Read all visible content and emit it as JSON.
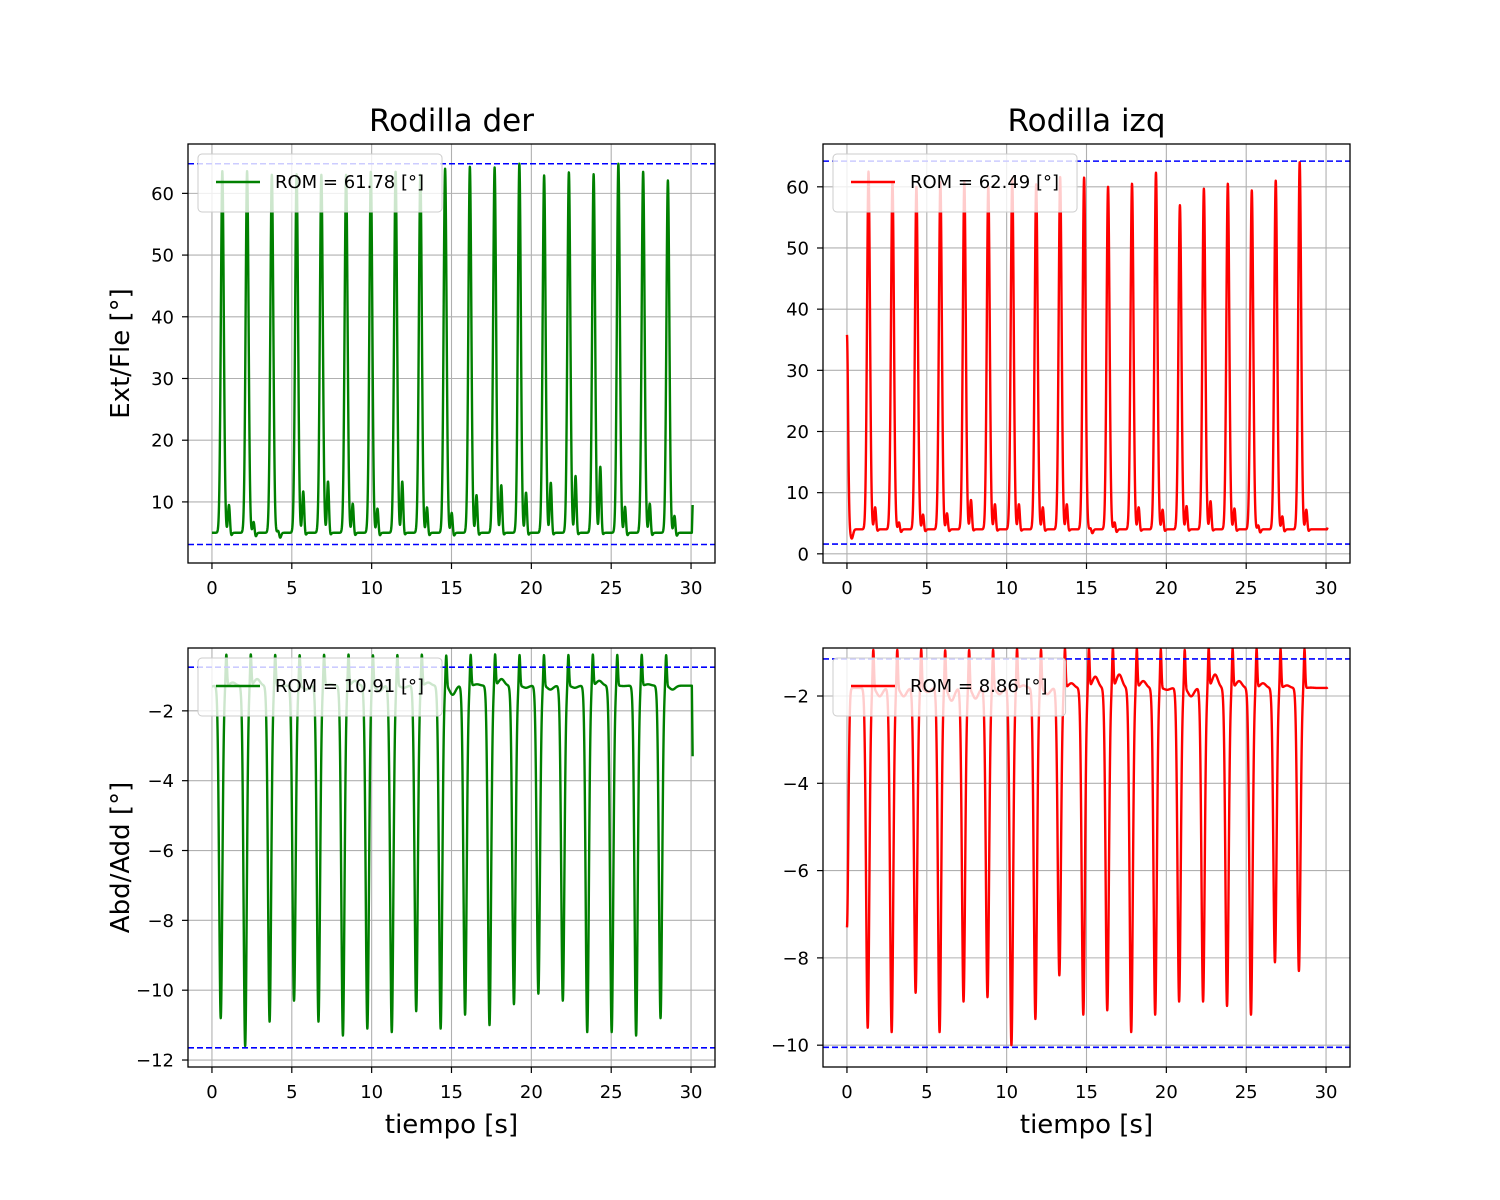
{
  "chart_data": [
    {
      "type": "line",
      "title": "Rodilla der",
      "xlabel": "",
      "ylabel": "Ext/Fle [°]",
      "xlim": [
        -1.5,
        31.5
      ],
      "ylim": [
        0.1,
        68
      ],
      "xticks": [
        0,
        5,
        10,
        15,
        20,
        25,
        30
      ],
      "yticks": [
        10,
        20,
        30,
        40,
        50,
        60
      ],
      "grid": true,
      "legend_position": "top-left",
      "color": "#008000",
      "series": [
        {
          "name": "ROM = 61.78 [°]",
          "start": 0,
          "end": 30.1,
          "base": 5,
          "first_peak": 0.65,
          "period": 1.55,
          "peaks": [
            63.6,
            63.6,
            63.0,
            63.1,
            63.0,
            63.0,
            63.5,
            63.5,
            63.0,
            64.0,
            64.3,
            64.2,
            64.8,
            62.9,
            63.4,
            63.1,
            64.8,
            63.5,
            62.1
          ],
          "bumps": [
            10.8,
            8.0,
            6.5,
            13.0,
            14.6,
            11.0,
            10.2,
            14.6,
            10.4,
            9.5,
            12.4,
            14.0,
            12.8,
            14.4,
            15.5,
            17.0,
            10.5,
            11.0,
            9.0
          ],
          "final": 9.5
        }
      ],
      "reference_lines": [
        64.8,
        3.1
      ]
    },
    {
      "type": "line",
      "title": "Rodilla izq",
      "xlabel": "",
      "ylabel": "",
      "xlim": [
        -1.5,
        31.5
      ],
      "ylim": [
        -1.5,
        67
      ],
      "xticks": [
        0,
        5,
        10,
        15,
        20,
        25,
        30
      ],
      "yticks": [
        0,
        10,
        20,
        30,
        40,
        50,
        60
      ],
      "grid": true,
      "legend_position": "top-left",
      "color": "#ff0000",
      "series": [
        {
          "name": "ROM = 62.49 [°]",
          "start": 0,
          "end": 30.1,
          "base": 4,
          "first_peak": 1.35,
          "period": 1.5,
          "peaks": [
            62.5,
            60.8,
            60.0,
            60.8,
            60.8,
            60.0,
            61.4,
            60.4,
            61.6,
            61.5,
            60.0,
            60.5,
            62.3,
            57.0,
            59.7,
            60.5,
            59.4,
            61.0,
            64.0
          ],
          "bumps": [
            9.0,
            6.5,
            7.8,
            8.0,
            10.2,
            9.5,
            9.5,
            9.0,
            9.5,
            5.5,
            6.5,
            9.0,
            8.6,
            9.2,
            10.0,
            8.8,
            6.0,
            7.5,
            8.6
          ],
          "start_value": 35.8,
          "final": 4.3
        }
      ],
      "reference_lines": [
        64.2,
        1.6
      ]
    },
    {
      "type": "line",
      "title": "",
      "xlabel": "tiempo [s]",
      "ylabel": "Abd/Add [°]",
      "xlim": [
        -1.5,
        31.5
      ],
      "ylim": [
        -12.2,
        -0.2
      ],
      "xticks": [
        0,
        5,
        10,
        15,
        20,
        25,
        30
      ],
      "yticks": [
        -12,
        -10,
        -8,
        -6,
        -4,
        -2
      ],
      "grid": true,
      "legend_position": "top-left",
      "color": "#008000",
      "series": [
        {
          "name": "ROM = 10.91 [°]",
          "start": 0,
          "end": 30.1,
          "first_peak": 0.55,
          "period": 1.53,
          "troughs": [
            -10.8,
            -11.6,
            -10.9,
            -10.3,
            -10.9,
            -11.3,
            -11.1,
            -11.2,
            -10.6,
            -11.1,
            -10.7,
            -11.0,
            -10.4,
            -10.1,
            -10.3,
            -11.2,
            -11.2,
            -11.3,
            -10.8
          ],
          "highs": [
            -1.1,
            -0.9,
            -1.3,
            -1.5,
            -1.2,
            -1.0,
            -1.6,
            -1.4,
            -1.1,
            -1.8,
            -1.2,
            -0.9,
            -1.4,
            -1.5,
            -1.4,
            -1.0,
            -1.3,
            -1.2,
            -1.5
          ],
          "shoulder": -3.5,
          "start_value": -1.3,
          "final": -3.3
        }
      ],
      "reference_lines": [
        -0.75,
        -11.65
      ]
    },
    {
      "type": "line",
      "title": "",
      "xlabel": "tiempo [s]",
      "ylabel": "",
      "xlim": [
        -1.5,
        31.5
      ],
      "ylim": [
        -10.5,
        -0.9
      ],
      "xticks": [
        0,
        5,
        10,
        15,
        20,
        25,
        30
      ],
      "yticks": [
        -10,
        -8,
        -6,
        -4,
        -2
      ],
      "grid": true,
      "legend_position": "top-left",
      "color": "#ff0000",
      "series": [
        {
          "name": "ROM = 8.86 [°]",
          "start": 0,
          "end": 30.1,
          "first_peak": 1.3,
          "period": 1.5,
          "troughs": [
            -9.6,
            -9.7,
            -8.8,
            -9.7,
            -9.0,
            -8.9,
            -10.0,
            -9.4,
            -8.4,
            -9.3,
            -9.2,
            -9.7,
            -9.3,
            -9.0,
            -9.0,
            -9.1,
            -9.3,
            -8.1,
            -8.3
          ],
          "highs": [
            -2.2,
            -2.2,
            -2.0,
            -2.4,
            -2.3,
            -2.1,
            -1.7,
            -2.1,
            -1.6,
            -1.3,
            -1.2,
            -1.5,
            -1.9,
            -2.2,
            -1.2,
            -1.5,
            -1.6,
            -1.7,
            -1.8
          ],
          "start_value": -7.3,
          "final": -1.8
        }
      ],
      "reference_lines": [
        -1.15,
        -10.05
      ]
    }
  ]
}
